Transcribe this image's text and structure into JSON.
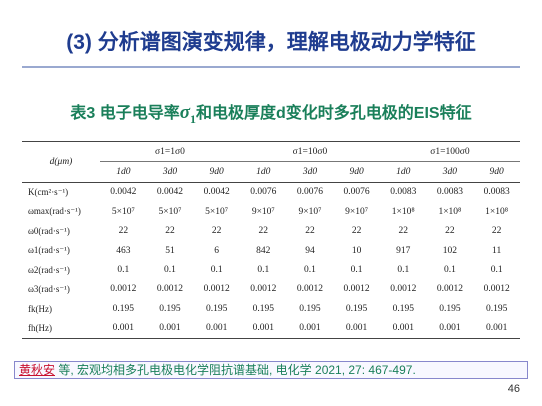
{
  "slide": {
    "title": "(3) 分析谱图演变规律，理解电极动力学特征",
    "caption_prefix": "表3 电子电导率",
    "caption_symbol": "σ",
    "caption_sub": "1",
    "caption_suffix": "和电极厚度d变化时多孔电极的EIS特征",
    "page_number": "46"
  },
  "table": {
    "row_label_header": "d(μm)",
    "groups": [
      "σ1=1σ0",
      "σ1=10σ0",
      "σ1=100σ0"
    ],
    "columns": [
      "1d0",
      "3d0",
      "9d0",
      "1d0",
      "3d0",
      "9d0",
      "1d0",
      "3d0",
      "9d0"
    ],
    "rows": [
      {
        "label": "K(cm²·s⁻¹)",
        "values": [
          "0.0042",
          "0.0042",
          "0.0042",
          "0.0076",
          "0.0076",
          "0.0076",
          "0.0083",
          "0.0083",
          "0.0083"
        ]
      },
      {
        "label": "ωmax(rad·s⁻¹)",
        "values": [
          "5×10⁷",
          "5×10⁷",
          "5×10⁷",
          "9×10⁷",
          "9×10⁷",
          "9×10⁷",
          "1×10⁸",
          "1×10⁸",
          "1×10⁸"
        ]
      },
      {
        "label": "ω0(rad·s⁻¹)",
        "values": [
          "22",
          "22",
          "22",
          "22",
          "22",
          "22",
          "22",
          "22",
          "22"
        ]
      },
      {
        "label": "ω1(rad·s⁻¹)",
        "values": [
          "463",
          "51",
          "6",
          "842",
          "94",
          "10",
          "917",
          "102",
          "11"
        ]
      },
      {
        "label": "ω2(rad·s⁻¹)",
        "values": [
          "0.1",
          "0.1",
          "0.1",
          "0.1",
          "0.1",
          "0.1",
          "0.1",
          "0.1",
          "0.1"
        ]
      },
      {
        "label": "ω3(rad·s⁻¹)",
        "values": [
          "0.0012",
          "0.0012",
          "0.0012",
          "0.0012",
          "0.0012",
          "0.0012",
          "0.0012",
          "0.0012",
          "0.0012"
        ]
      },
      {
        "label": "fk(Hz)",
        "values": [
          "0.195",
          "0.195",
          "0.195",
          "0.195",
          "0.195",
          "0.195",
          "0.195",
          "0.195",
          "0.195"
        ]
      },
      {
        "label": "fh(Hz)",
        "values": [
          "0.001",
          "0.001",
          "0.001",
          "0.001",
          "0.001",
          "0.001",
          "0.001",
          "0.001",
          "0.001"
        ]
      }
    ]
  },
  "citation": {
    "authors": "黄秋安",
    "rest": " 等, 宏观均相多孔电极电化学阻抗谱基础, 电化学 2021, 27: 467-497."
  }
}
